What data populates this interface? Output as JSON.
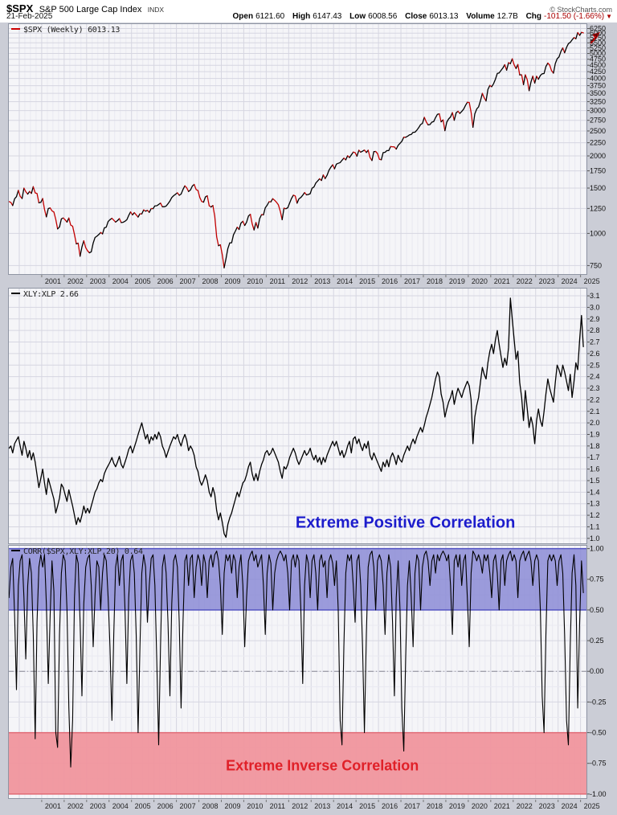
{
  "header": {
    "symbol": "$SPX",
    "name": "S&P 500 Large Cap Index",
    "exchange": "INDX",
    "date": "21-Feb-2025",
    "credit": "© StockCharts.com",
    "quote": {
      "open_label": "Open",
      "open": "6121.60",
      "high_label": "High",
      "high": "6147.43",
      "low_label": "Low",
      "low": "6008.56",
      "close_label": "Close",
      "close": "6013.13",
      "volume_label": "Volume",
      "volume": "12.7B",
      "chg_label": "Chg",
      "chg": "-101.50 (-1.66%)",
      "chg_arrow": "▼",
      "chg_color": "#aa0000"
    }
  },
  "colors": {
    "frame_bg": "#cbcdd6",
    "plot_bg": "#f5f5f8",
    "grid_major": "#d6d6e1",
    "grid_minor": "#e9e9f1",
    "panel_border": "#8f95a3",
    "axis_text": "#111111",
    "year_text": "#222222"
  },
  "chart_data": [
    {
      "id": "spx",
      "type": "line",
      "legend": "$SPX (Weekly) 6013.13",
      "legend_dash_color": "#cc0000",
      "scale": "log",
      "color_mode": "direction",
      "up_color": "#000000",
      "down_color": "#c20000",
      "arrow_color": "#cc0000",
      "x_start": 1999.542,
      "x_step": 0.083333,
      "xlabel": "",
      "ylabel": "",
      "ylim": [
        690,
        6550
      ],
      "ytick_values": [
        6250,
        6000,
        5750,
        5500,
        5250,
        5000,
        4750,
        4500,
        4250,
        4000,
        3750,
        3500,
        3250,
        3000,
        2750,
        2500,
        2250,
        2000,
        1750,
        1500,
        1250,
        1000,
        750
      ],
      "ytick_labels": [
        "6250",
        "6000",
        "5750",
        "5500",
        "5250",
        "5000",
        "4750",
        "4500",
        "4250",
        "4000",
        "3750",
        "3500",
        "3250",
        "3000",
        "2750",
        "2500",
        "2250",
        "2000",
        "1750",
        "1500",
        "1250",
        "1000",
        "750"
      ],
      "x_axis_labels": [
        "2001",
        "2002",
        "2003",
        "2004",
        "2005",
        "2006",
        "2007",
        "2008",
        "2009",
        "2010",
        "2011",
        "2012",
        "2013",
        "2014",
        "2015",
        "2016",
        "2017",
        "2018",
        "2019",
        "2020",
        "2021",
        "2022",
        "2023",
        "2024",
        "2025"
      ],
      "values": [
        1329,
        1320,
        1283,
        1363,
        1389,
        1469,
        1394,
        1366,
        1499,
        1452,
        1421,
        1455,
        1431,
        1518,
        1437,
        1429,
        1315,
        1320,
        1366,
        1240,
        1160,
        1249,
        1256,
        1224,
        1211,
        1134,
        1041,
        1060,
        1139,
        1148,
        1130,
        1107,
        1147,
        1077,
        1067,
        990,
        911,
        916,
        815,
        886,
        936,
        880,
        856,
        841,
        848,
        917,
        964,
        975,
        990,
        1008,
        996,
        1051,
        1058,
        1112,
        1131,
        1145,
        1126,
        1107,
        1121,
        1141,
        1102,
        1104,
        1115,
        1130,
        1174,
        1212,
        1181,
        1204,
        1181,
        1157,
        1192,
        1191,
        1234,
        1220,
        1229,
        1207,
        1249,
        1248,
        1280,
        1281,
        1295,
        1311,
        1270,
        1270,
        1277,
        1304,
        1336,
        1378,
        1401,
        1418,
        1438,
        1407,
        1421,
        1482,
        1531,
        1503,
        1455,
        1474,
        1527,
        1549,
        1481,
        1468,
        1379,
        1331,
        1323,
        1386,
        1400,
        1280,
        1267,
        1283,
        1166,
        969,
        896,
        903,
        826,
        735,
        798,
        873,
        919,
        919,
        987,
        1021,
        1057,
        1036,
        1096,
        1115,
        1074,
        1104,
        1169,
        1187,
        1089,
        1031,
        1102,
        1049,
        1141,
        1183,
        1181,
        1258,
        1286,
        1327,
        1326,
        1364,
        1345,
        1321,
        1292,
        1219,
        1131,
        1253,
        1247,
        1258,
        1312,
        1366,
        1408,
        1398,
        1310,
        1362,
        1379,
        1407,
        1441,
        1412,
        1416,
        1426,
        1498,
        1515,
        1569,
        1598,
        1631,
        1606,
        1686,
        1633,
        1682,
        1757,
        1806,
        1848,
        1783,
        1859,
        1872,
        1884,
        1924,
        1960,
        1931,
        2003,
        1972,
        2018,
        2068,
        2059,
        1995,
        2105,
        2068,
        2086,
        2107,
        2063,
        2104,
        1972,
        1920,
        2079,
        2080,
        2044,
        1940,
        1932,
        2060,
        2065,
        2097,
        2099,
        2174,
        2171,
        2168,
        2126,
        2199,
        2239,
        2279,
        2364,
        2363,
        2384,
        2412,
        2423,
        2470,
        2472,
        2519,
        2575,
        2648,
        2674,
        2824,
        2714,
        2641,
        2648,
        2705,
        2718,
        2816,
        2902,
        2914,
        2712,
        2760,
        2507,
        2704,
        2784,
        2834,
        2946,
        2752,
        2942,
        2980,
        2926,
        2977,
        3038,
        3141,
        3231,
        3226,
        2954,
        2585,
        2912,
        3044,
        3100,
        3271,
        3500,
        3363,
        3270,
        3622,
        3756,
        3714,
        3811,
        3973,
        4181,
        4204,
        4298,
        4395,
        4523,
        4308,
        4605,
        4567,
        4766,
        4516,
        4374,
        4530,
        4132,
        4132,
        3785,
        4130,
        3955,
        3586,
        3872,
        4080,
        3840,
        4077,
        3970,
        4109,
        4169,
        4180,
        4450,
        4589,
        4508,
        4288,
        4194,
        4568,
        4770,
        4846,
        5096,
        5254,
        5036,
        5278,
        5460,
        5522,
        5648,
        5762,
        5705,
        6032,
        5882,
        6041,
        6013
      ]
    },
    {
      "id": "xlyxlp",
      "type": "line",
      "legend": "XLY:XLP 2.66",
      "legend_dash_color": "#000000",
      "scale": "linear",
      "line_color": "#000000",
      "x_start": 1999.542,
      "x_step": 0.083333,
      "ylim": [
        0.95,
        3.17
      ],
      "ytick_values": [
        3.1,
        3.0,
        2.9,
        2.8,
        2.7,
        2.6,
        2.5,
        2.4,
        2.3,
        2.2,
        2.1,
        2.0,
        1.9,
        1.8,
        1.7,
        1.6,
        1.5,
        1.4,
        1.3,
        1.2,
        1.1,
        1.0
      ],
      "ytick_labels": [
        "3.1",
        "3.0",
        "2.9",
        "2.8",
        "2.7",
        "2.6",
        "2.5",
        "2.4",
        "2.3",
        "2.2",
        "2.1",
        "2.0",
        "1.9",
        "1.8",
        "1.7",
        "1.6",
        "1.5",
        "1.4",
        "1.3",
        "1.2",
        "1.1",
        "1.0"
      ],
      "annotation": {
        "text": "Extreme Positive Correlation",
        "color": "#1c1ccc",
        "x": 2017.2,
        "y": 1.13
      },
      "values": [
        1.78,
        1.8,
        1.74,
        1.82,
        1.85,
        1.88,
        1.8,
        1.72,
        1.84,
        1.78,
        1.7,
        1.76,
        1.68,
        1.74,
        1.66,
        1.55,
        1.44,
        1.52,
        1.6,
        1.48,
        1.38,
        1.52,
        1.46,
        1.4,
        1.34,
        1.22,
        1.28,
        1.35,
        1.47,
        1.44,
        1.38,
        1.32,
        1.42,
        1.35,
        1.28,
        1.2,
        1.12,
        1.18,
        1.14,
        1.2,
        1.28,
        1.22,
        1.26,
        1.22,
        1.28,
        1.34,
        1.4,
        1.43,
        1.48,
        1.51,
        1.49,
        1.56,
        1.6,
        1.63,
        1.66,
        1.7,
        1.65,
        1.62,
        1.66,
        1.71,
        1.64,
        1.61,
        1.66,
        1.71,
        1.77,
        1.8,
        1.74,
        1.79,
        1.84,
        1.9,
        1.95,
        2.0,
        1.93,
        1.86,
        1.9,
        1.82,
        1.88,
        1.85,
        1.9,
        1.86,
        1.92,
        1.88,
        1.8,
        1.76,
        1.7,
        1.75,
        1.8,
        1.84,
        1.88,
        1.86,
        1.9,
        1.84,
        1.8,
        1.86,
        1.9,
        1.85,
        1.76,
        1.8,
        1.77,
        1.72,
        1.62,
        1.58,
        1.5,
        1.46,
        1.5,
        1.55,
        1.5,
        1.4,
        1.36,
        1.44,
        1.38,
        1.24,
        1.16,
        1.22,
        1.14,
        1.04,
        1.01,
        1.12,
        1.18,
        1.22,
        1.28,
        1.34,
        1.4,
        1.36,
        1.42,
        1.48,
        1.5,
        1.55,
        1.62,
        1.66,
        1.56,
        1.5,
        1.56,
        1.5,
        1.58,
        1.64,
        1.68,
        1.74,
        1.76,
        1.72,
        1.74,
        1.78,
        1.74,
        1.7,
        1.66,
        1.58,
        1.52,
        1.62,
        1.6,
        1.64,
        1.7,
        1.74,
        1.78,
        1.74,
        1.68,
        1.64,
        1.68,
        1.72,
        1.76,
        1.72,
        1.74,
        1.78,
        1.72,
        1.68,
        1.72,
        1.66,
        1.7,
        1.64,
        1.7,
        1.66,
        1.72,
        1.76,
        1.8,
        1.84,
        1.8,
        1.84,
        1.78,
        1.72,
        1.76,
        1.7,
        1.74,
        1.8,
        1.84,
        1.74,
        1.86,
        1.88,
        1.82,
        1.86,
        1.8,
        1.76,
        1.82,
        1.78,
        1.84,
        1.72,
        1.68,
        1.74,
        1.7,
        1.66,
        1.62,
        1.58,
        1.66,
        1.62,
        1.68,
        1.62,
        1.7,
        1.74,
        1.7,
        1.64,
        1.72,
        1.68,
        1.66,
        1.72,
        1.76,
        1.8,
        1.76,
        1.82,
        1.86,
        1.82,
        1.88,
        1.92,
        1.96,
        1.92,
        1.98,
        2.05,
        2.1,
        2.16,
        2.22,
        2.3,
        2.38,
        2.44,
        2.4,
        2.25,
        2.18,
        2.05,
        2.12,
        2.18,
        2.22,
        2.28,
        2.16,
        2.24,
        2.3,
        2.26,
        2.22,
        2.28,
        2.32,
        2.36,
        2.32,
        2.2,
        1.82,
        2.05,
        2.15,
        2.22,
        2.35,
        2.48,
        2.42,
        2.38,
        2.52,
        2.62,
        2.68,
        2.6,
        2.72,
        2.8,
        2.68,
        2.58,
        2.48,
        2.56,
        2.5,
        2.65,
        3.08,
        2.9,
        2.72,
        2.55,
        2.62,
        2.35,
        2.22,
        2.02,
        2.28,
        2.12,
        1.96,
        2.05,
        1.98,
        1.82,
        2.02,
        2.12,
        2.02,
        1.97,
        2.1,
        2.25,
        2.38,
        2.3,
        2.24,
        2.18,
        2.35,
        2.5,
        2.46,
        2.4,
        2.5,
        2.44,
        2.36,
        2.28,
        2.42,
        2.22,
        2.36,
        2.52,
        2.46,
        2.72,
        2.93,
        2.66
      ]
    },
    {
      "id": "correlation",
      "type": "line",
      "legend": "CORR($SPX,XLY:XLP,20) 0.64",
      "legend_dash_color": "#000000",
      "scale": "linear",
      "line_color": "#000000",
      "x_start": 1999.542,
      "x_step": 0.083333,
      "ylim": [
        -1.04,
        1.03
      ],
      "zero_line": true,
      "hgrid_minor_step": 0.125,
      "ytick_values": [
        1.0,
        0.75,
        0.5,
        0.25,
        0.0,
        -0.25,
        -0.5,
        -0.75,
        -1.0
      ],
      "ytick_labels": [
        "1.00",
        "0.75",
        "0.50",
        "0.25",
        "0.00",
        "-0.25",
        "-0.50",
        "-0.75",
        "-1.00"
      ],
      "x_axis_labels": [
        "2001",
        "2002",
        "2003",
        "2004",
        "2005",
        "2006",
        "2007",
        "2008",
        "2009",
        "2010",
        "2011",
        "2012",
        "2013",
        "2014",
        "2015",
        "2016",
        "2017",
        "2018",
        "2019",
        "2020",
        "2021",
        "2022",
        "2023",
        "2024",
        "2025"
      ],
      "bands": [
        {
          "from": 0.5,
          "to": 1.0,
          "fill": "#8b8bd6",
          "opacity": 0.85,
          "edge": "#4e4ec0",
          "label": "extreme-positive-zone"
        },
        {
          "from": -1.0,
          "to": -0.5,
          "fill": "#f0959d",
          "opacity": 0.95,
          "edge": "#e06570",
          "label": "extreme-inverse-zone"
        }
      ],
      "annotation": {
        "text": "Extreme Inverse Correlation",
        "color": "#e02028",
        "x": 2013.5,
        "y": -0.77
      },
      "values": [
        0.6,
        0.85,
        0.92,
        0.45,
        -0.15,
        0.7,
        0.9,
        0.95,
        0.6,
        0.1,
        0.7,
        0.92,
        0.8,
        0.3,
        -0.55,
        0.4,
        0.85,
        0.95,
        0.85,
        0.95,
        0.55,
        -0.1,
        0.45,
        0.9,
        0.65,
        -0.5,
        -0.62,
        0.3,
        0.8,
        0.95,
        0.9,
        0.5,
        -0.3,
        -0.78,
        -0.4,
        0.6,
        0.95,
        0.88,
        0.4,
        -0.2,
        0.55,
        0.85,
        0.92,
        0.95,
        0.7,
        0.2,
        0.62,
        0.9,
        0.85,
        0.5,
        0.8,
        0.95,
        0.9,
        0.6,
        0.2,
        -0.4,
        0.3,
        0.85,
        0.95,
        0.7,
        0.9,
        0.95,
        0.5,
        -0.1,
        0.6,
        0.9,
        0.95,
        0.8,
        0.3,
        -0.5,
        0.2,
        0.8,
        0.95,
        0.85,
        0.4,
        0.7,
        0.92,
        0.95,
        0.7,
        0.1,
        -0.6,
        0.2,
        0.85,
        0.95,
        0.8,
        0.4,
        -0.2,
        0.55,
        0.9,
        0.95,
        0.85,
        0.4,
        -0.3,
        0.4,
        0.9,
        0.95,
        0.7,
        0.92,
        0.95,
        0.6,
        0.85,
        0.95,
        0.9,
        0.7,
        0.95,
        0.88,
        0.6,
        0.9,
        0.95,
        0.85,
        0.95,
        0.98,
        0.9,
        0.7,
        0.3,
        0.8,
        0.95,
        0.9,
        0.95,
        0.8,
        0.95,
        0.9,
        0.6,
        0.85,
        0.95,
        0.7,
        0.2,
        0.6,
        0.9,
        0.95,
        0.98,
        0.9,
        0.95,
        0.85,
        0.9,
        0.95,
        0.7,
        0.3,
        0.8,
        0.95,
        0.88,
        0.5,
        0.8,
        0.9,
        0.95,
        0.98,
        0.95,
        0.9,
        0.95,
        0.8,
        0.5,
        0.9,
        0.95,
        0.85,
        0.95,
        0.9,
        0.5,
        -0.1,
        0.7,
        0.95,
        0.88,
        0.6,
        0.9,
        0.95,
        0.8,
        0.5,
        0.9,
        0.95,
        0.85,
        0.9,
        0.6,
        0.9,
        0.95,
        0.88,
        0.7,
        0.9,
        0.5,
        -0.4,
        -0.6,
        0.2,
        0.8,
        0.95,
        0.9,
        0.95,
        0.7,
        0.4,
        0.9,
        0.95,
        0.7,
        0.2,
        -0.5,
        0.3,
        0.85,
        0.95,
        0.98,
        0.85,
        0.5,
        0.9,
        0.95,
        0.9,
        0.7,
        0.3,
        0.8,
        0.95,
        0.85,
        0.4,
        -0.2,
        0.6,
        0.9,
        0.5,
        -0.3,
        -0.65,
        0.1,
        0.7,
        0.9,
        0.6,
        0.2,
        0.8,
        0.95,
        0.9,
        0.5,
        0.85,
        0.95,
        0.98,
        0.9,
        0.7,
        0.9,
        0.95,
        0.8,
        0.95,
        0.9,
        0.95,
        0.98,
        0.95,
        0.9,
        0.95,
        0.7,
        0.3,
        0.9,
        0.95,
        0.85,
        0.95,
        0.7,
        0.9,
        0.95,
        0.6,
        0.2,
        0.8,
        0.98,
        0.95,
        0.9,
        0.95,
        0.9,
        0.8,
        0.95,
        0.9,
        0.95,
        0.8,
        0.6,
        0.9,
        0.95,
        0.8,
        0.5,
        0.9,
        0.95,
        0.7,
        0.9,
        0.95,
        0.98,
        0.9,
        0.95,
        0.9,
        0.6,
        0.9,
        0.95,
        0.98,
        0.9,
        0.95,
        0.98,
        0.9,
        0.7,
        0.9,
        0.95,
        0.9,
        0.5,
        -0.2,
        -0.5,
        0.3,
        0.9,
        0.95,
        0.9,
        0.95,
        0.9,
        0.7,
        0.9,
        0.95,
        0.8,
        0.3,
        -0.4,
        -0.6,
        0.2,
        0.8,
        0.95,
        0.7,
        -0.3,
        0.4,
        0.9,
        0.64
      ]
    }
  ]
}
